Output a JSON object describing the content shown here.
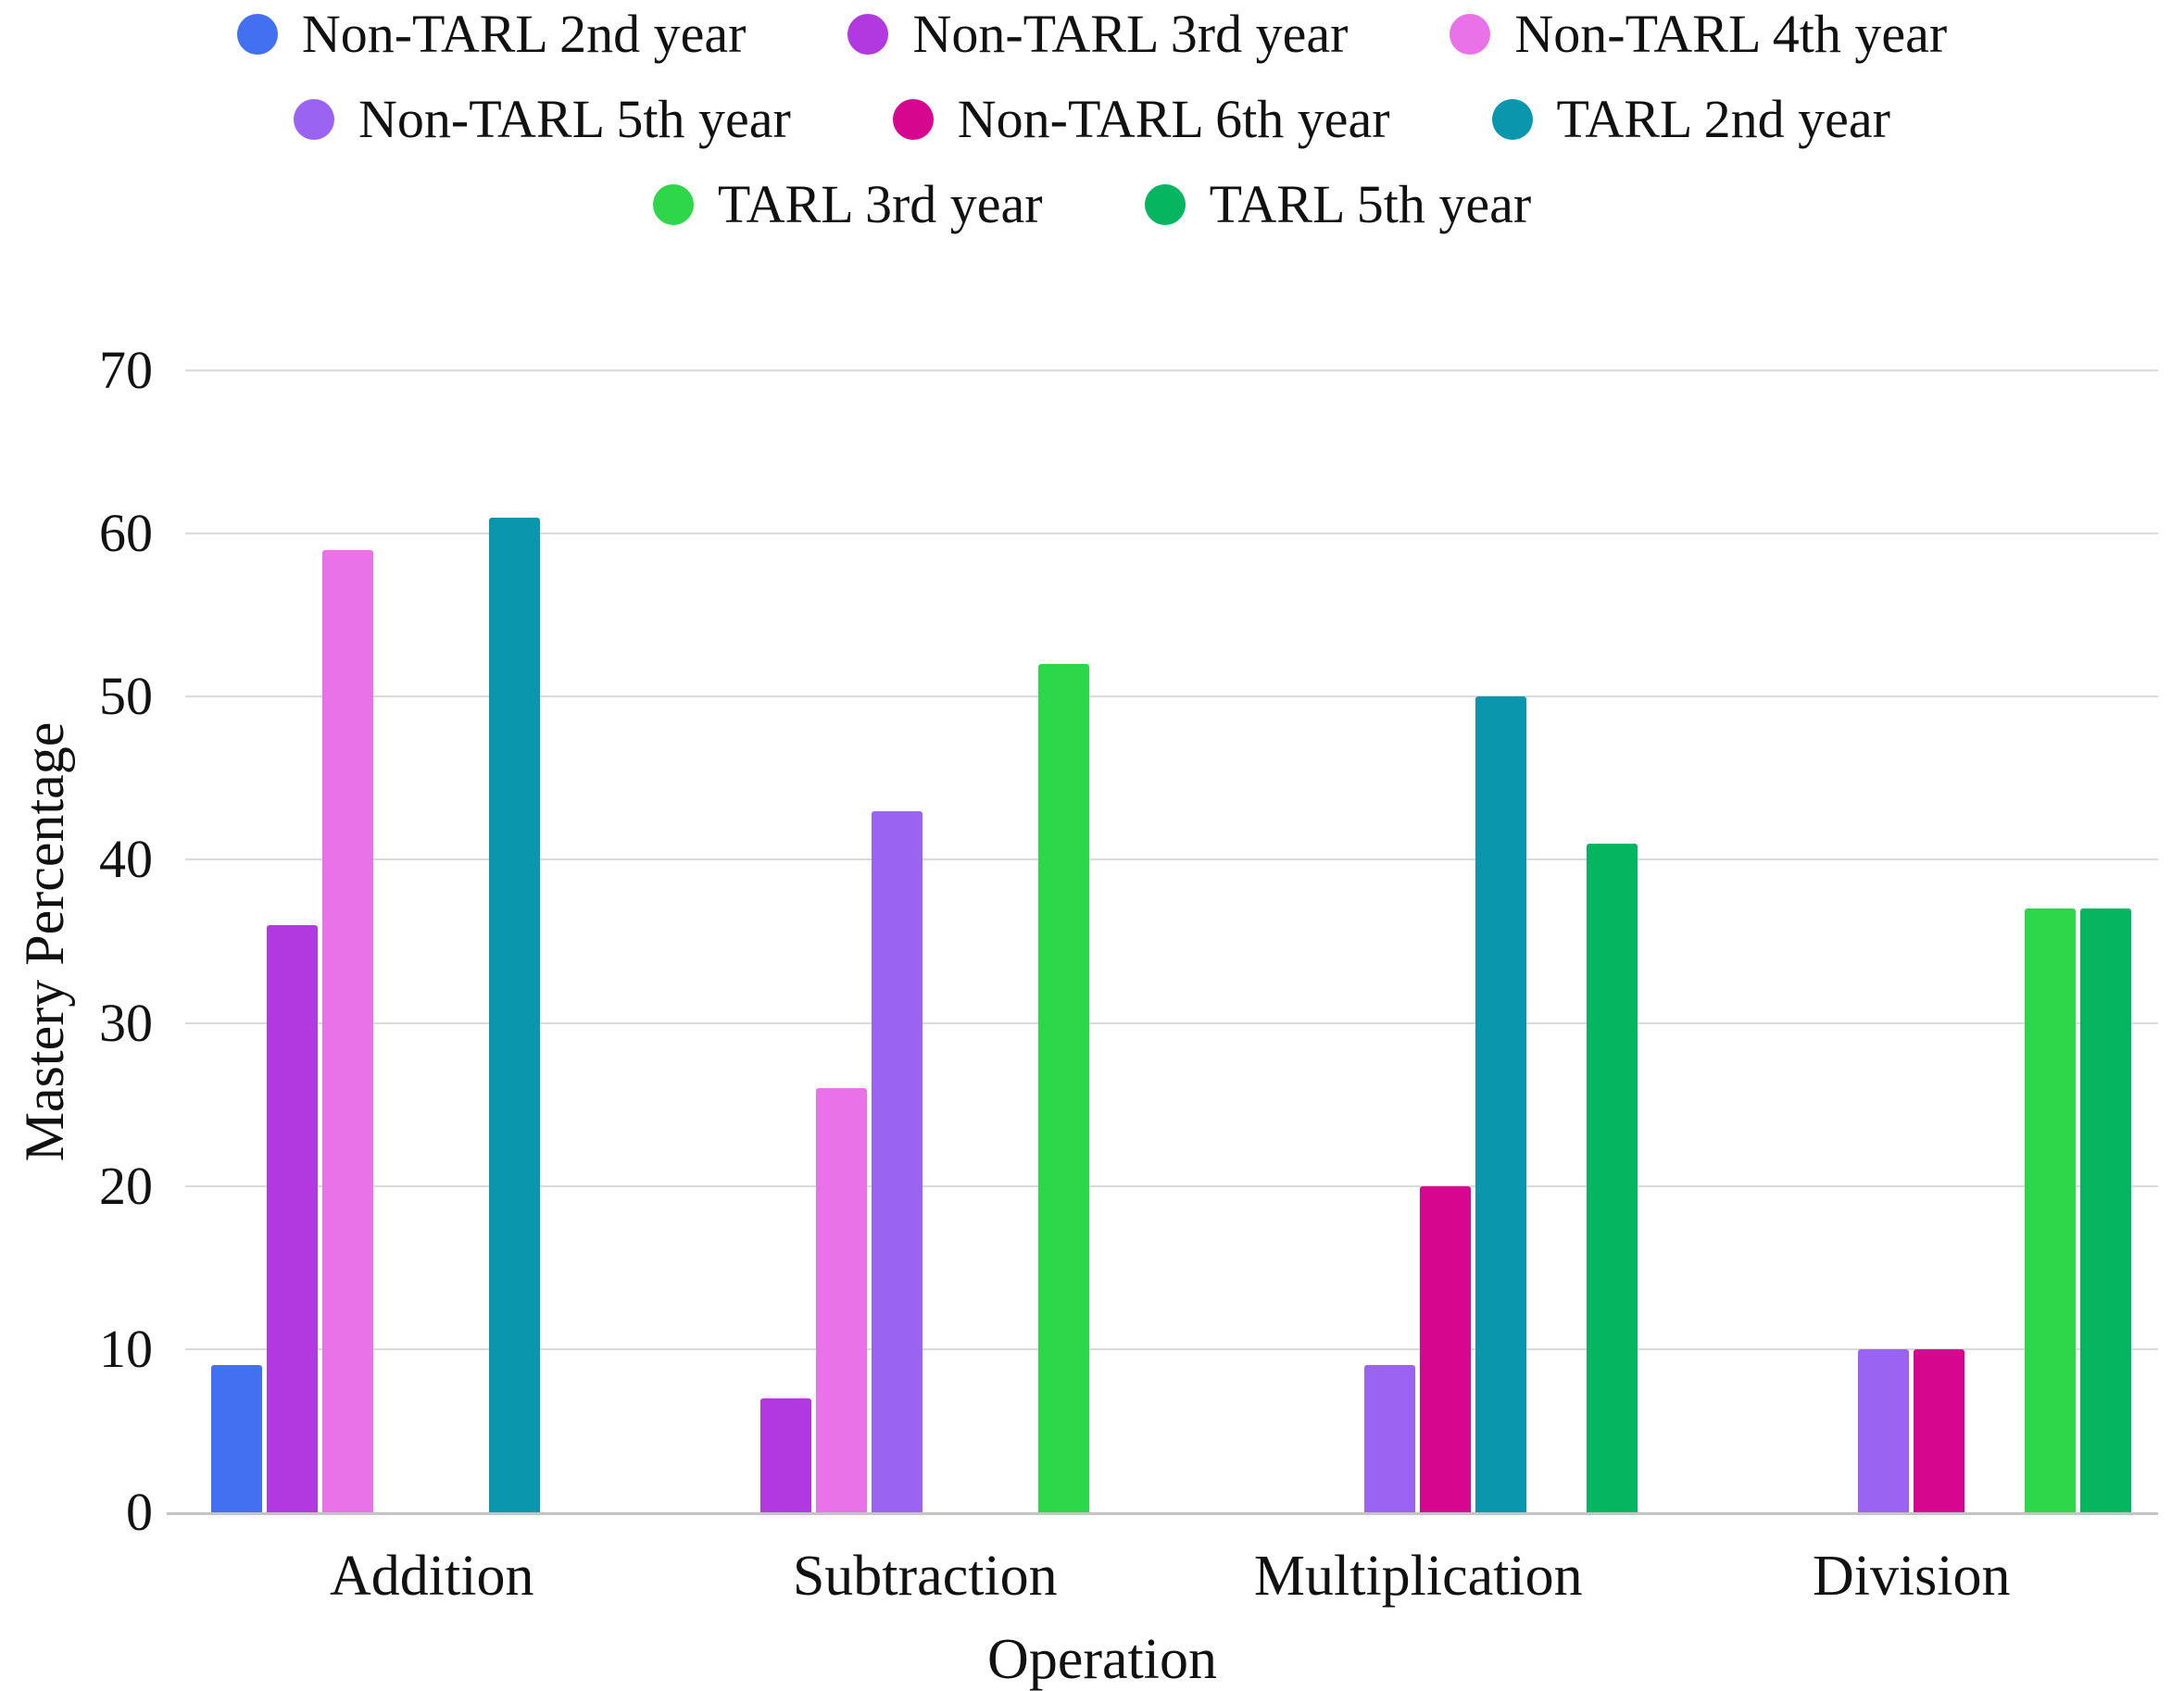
{
  "chart_data": {
    "type": "bar",
    "title": "",
    "categories": [
      "Addition",
      "Subtraction",
      "Multiplication",
      "Division"
    ],
    "series": [
      {
        "name": "Non-TARL 2nd year",
        "color": "#4270F0",
        "values": [
          9,
          0,
          0,
          0
        ]
      },
      {
        "name": "Non-TARL 3rd year",
        "color": "#B238E0",
        "values": [
          36,
          7,
          0,
          0
        ]
      },
      {
        "name": "Non-TARL 4th year",
        "color": "#E873E8",
        "values": [
          59,
          26,
          0,
          0
        ]
      },
      {
        "name": "Non-TARL 5th year",
        "color": "#9A63F2",
        "values": [
          0,
          43,
          9,
          10
        ]
      },
      {
        "name": "Non-TARL 6th year",
        "color": "#D6068E",
        "values": [
          0,
          0,
          20,
          10
        ]
      },
      {
        "name": "TARL 2nd year",
        "color": "#0A97AE",
        "values": [
          61,
          0,
          50,
          0
        ]
      },
      {
        "name": "TARL 3rd year",
        "color": "#2ED74A",
        "values": [
          0,
          52,
          0,
          37
        ]
      },
      {
        "name": "TARL 5th year",
        "color": "#06B55F",
        "values": [
          0,
          0,
          41,
          37
        ]
      }
    ],
    "xlabel": "Operation",
    "ylabel": "Mastery Percentage",
    "ylim": [
      0,
      70
    ],
    "yticks": [
      0,
      10,
      20,
      30,
      40,
      50,
      60,
      70
    ],
    "grid": true,
    "legend_position": "top",
    "legend_rows": [
      [
        0,
        1,
        2
      ],
      [
        3,
        4,
        5
      ],
      [
        6,
        7
      ]
    ]
  },
  "colors": {
    "grid": "#d9d9d9",
    "axis": "#c4c4c4",
    "text": "#111111",
    "background": "#ffffff"
  }
}
